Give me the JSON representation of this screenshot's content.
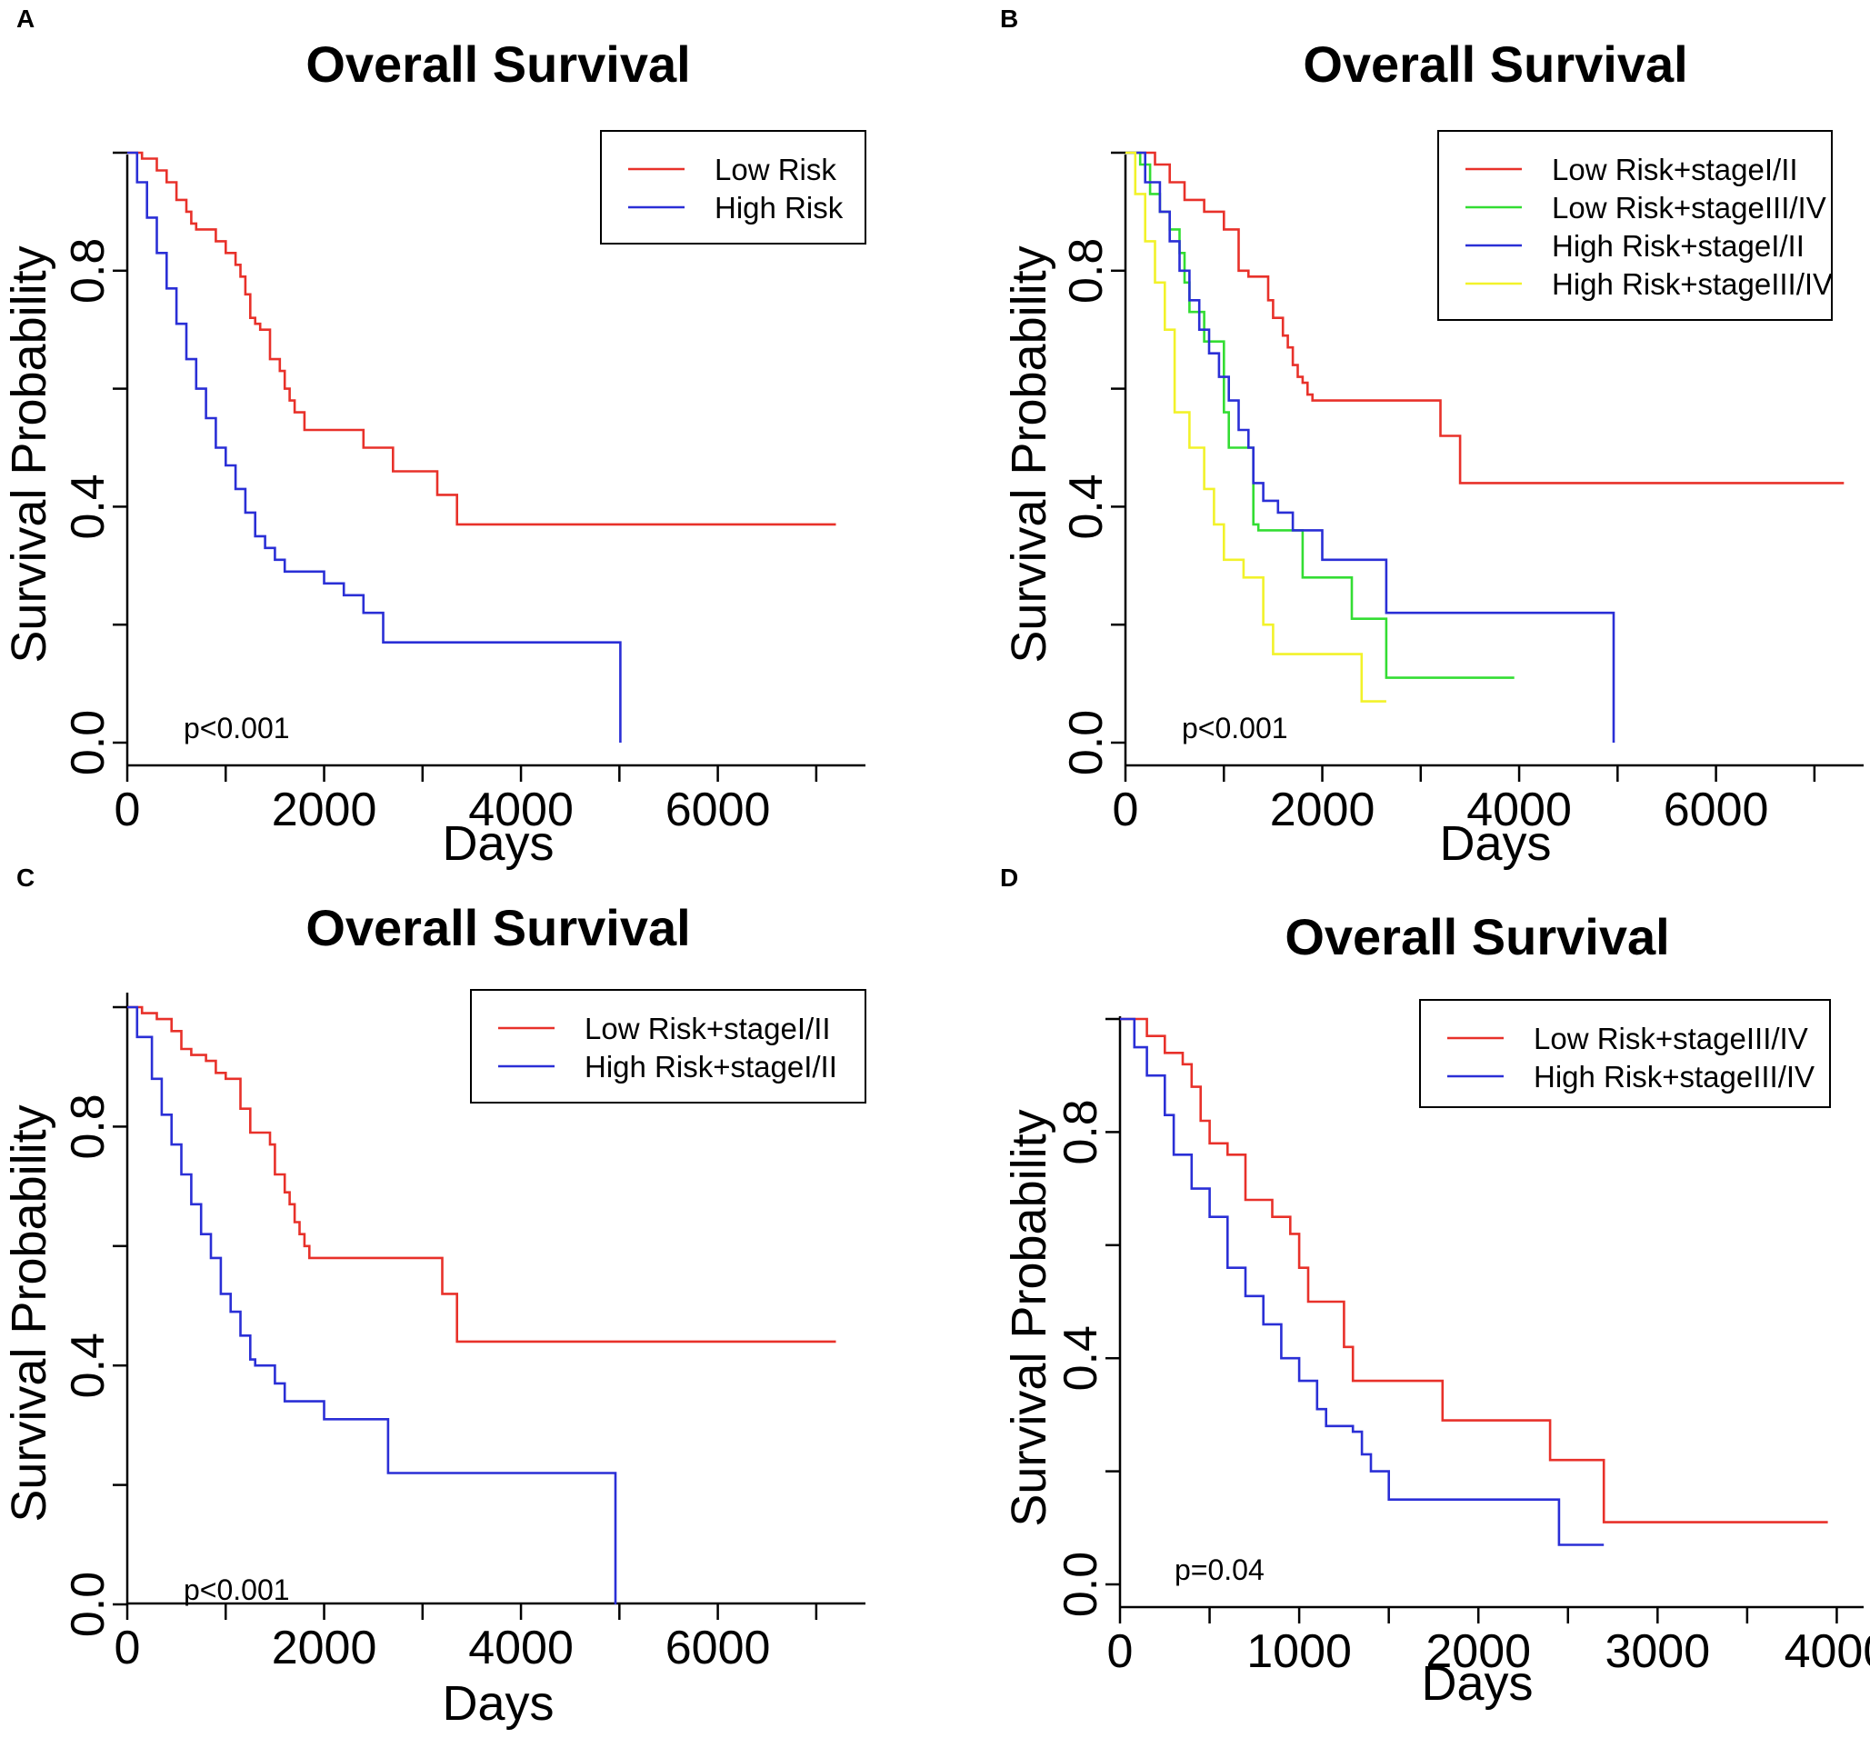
{
  "colors": {
    "red": "#e8312a",
    "blue": "#2a2fd6",
    "green": "#33dd33",
    "yellow": "#f2f22a",
    "black": "#000000"
  },
  "chart_data": [
    {
      "type": "line",
      "panel": "A",
      "title": "Overall Survival",
      "xlabel": "Days",
      "ylabel": "Survival Probability",
      "xlim": [
        0,
        7500
      ],
      "ylim": [
        0,
        1
      ],
      "x_ticks": [
        0,
        2000,
        4000,
        6000
      ],
      "y_ticks": [
        "0.0",
        "0.4",
        "0.8"
      ],
      "y_tick_values": [
        0,
        0.4,
        0.8
      ],
      "legend": [
        "Low Risk",
        "High Risk"
      ],
      "annotation": "p<0.001",
      "series": [
        {
          "name": "Low Risk",
          "color": "red",
          "x": [
            0,
            150,
            300,
            400,
            500,
            600,
            650,
            700,
            900,
            1000,
            1100,
            1150,
            1200,
            1250,
            1300,
            1350,
            1450,
            1550,
            1600,
            1650,
            1700,
            1800,
            1850,
            2400,
            2700,
            3150,
            3350,
            7200
          ],
          "y": [
            1.0,
            0.99,
            0.97,
            0.95,
            0.92,
            0.9,
            0.88,
            0.87,
            0.85,
            0.83,
            0.81,
            0.79,
            0.76,
            0.72,
            0.71,
            0.7,
            0.65,
            0.63,
            0.6,
            0.58,
            0.56,
            0.53,
            0.53,
            0.5,
            0.46,
            0.42,
            0.37,
            0.37
          ]
        },
        {
          "name": "High Risk",
          "color": "blue",
          "x": [
            0,
            100,
            200,
            300,
            400,
            500,
            600,
            700,
            800,
            900,
            1000,
            1100,
            1200,
            1300,
            1400,
            1500,
            1600,
            2000,
            2200,
            2400,
            2600,
            2650,
            5000,
            5010
          ],
          "y": [
            1.0,
            0.95,
            0.89,
            0.83,
            0.77,
            0.71,
            0.65,
            0.6,
            0.55,
            0.5,
            0.47,
            0.43,
            0.39,
            0.35,
            0.33,
            0.31,
            0.29,
            0.27,
            0.25,
            0.22,
            0.17,
            0.17,
            0.17,
            0.0
          ]
        }
      ]
    },
    {
      "type": "line",
      "panel": "B",
      "title": "Overall Survival",
      "xlabel": "Days",
      "ylabel": "Survival Probability",
      "xlim": [
        0,
        7500
      ],
      "ylim": [
        0,
        1
      ],
      "x_ticks": [
        0,
        2000,
        4000,
        6000
      ],
      "y_ticks": [
        "0.0",
        "0.4",
        "0.8"
      ],
      "y_tick_values": [
        0,
        0.4,
        0.8
      ],
      "legend": [
        "Low Risk+stageI/II",
        "Low Risk+stageIII/IV",
        "High Risk+stageI/II",
        "High Risk+stageIII/IV"
      ],
      "annotation": "p<0.001",
      "series": [
        {
          "name": "Low Risk+stageI/II",
          "color": "red",
          "x": [
            0,
            300,
            450,
            600,
            800,
            1000,
            1150,
            1250,
            1450,
            1500,
            1600,
            1650,
            1700,
            1750,
            1800,
            1850,
            1900,
            3200,
            3400,
            7300
          ],
          "y": [
            1.0,
            0.98,
            0.95,
            0.92,
            0.9,
            0.87,
            0.8,
            0.79,
            0.75,
            0.72,
            0.69,
            0.67,
            0.64,
            0.62,
            0.61,
            0.59,
            0.58,
            0.52,
            0.44,
            0.44
          ]
        },
        {
          "name": "Low Risk+stageIII/IV",
          "color": "green",
          "x": [
            0,
            150,
            250,
            350,
            450,
            550,
            600,
            650,
            800,
            1000,
            1050,
            1300,
            1350,
            1800,
            2300,
            2650,
            2700,
            3950
          ],
          "y": [
            1.0,
            0.98,
            0.93,
            0.9,
            0.87,
            0.83,
            0.78,
            0.73,
            0.68,
            0.56,
            0.5,
            0.37,
            0.36,
            0.28,
            0.21,
            0.11,
            0.11,
            0.11
          ]
        },
        {
          "name": "High Risk+stageI/II",
          "color": "blue",
          "x": [
            0,
            200,
            350,
            450,
            550,
            650,
            750,
            850,
            950,
            1050,
            1150,
            1250,
            1300,
            1400,
            1550,
            1700,
            2000,
            2650,
            2700,
            4950,
            4960
          ],
          "y": [
            1.0,
            0.95,
            0.9,
            0.85,
            0.8,
            0.75,
            0.7,
            0.66,
            0.62,
            0.58,
            0.53,
            0.5,
            0.44,
            0.41,
            0.39,
            0.36,
            0.31,
            0.22,
            0.22,
            0.22,
            0.0
          ]
        },
        {
          "name": "High Risk+stageIII/IV",
          "color": "yellow",
          "x": [
            0,
            100,
            200,
            300,
            400,
            500,
            650,
            800,
            900,
            1000,
            1200,
            1300,
            1400,
            1500,
            1900,
            2400,
            2650
          ],
          "y": [
            1.0,
            0.93,
            0.85,
            0.78,
            0.7,
            0.56,
            0.5,
            0.43,
            0.37,
            0.31,
            0.28,
            0.28,
            0.2,
            0.15,
            0.15,
            0.07,
            0.07
          ]
        }
      ]
    },
    {
      "type": "line",
      "panel": "C",
      "title": "Overall Survival",
      "xlabel": "Days",
      "ylabel": "Survival Probability",
      "xlim": [
        0,
        7500
      ],
      "ylim": [
        0,
        1
      ],
      "x_ticks": [
        0,
        2000,
        4000,
        6000
      ],
      "y_ticks": [
        "0.0",
        "0.4",
        "0.8"
      ],
      "y_tick_values": [
        0,
        0.4,
        0.8
      ],
      "legend": [
        "Low Risk+stageI/II",
        "High Risk+stageI/II"
      ],
      "annotation": "p<0.001",
      "series": [
        {
          "name": "Low Risk+stageI/II",
          "color": "red",
          "x": [
            0,
            150,
            300,
            450,
            550,
            650,
            800,
            900,
            1000,
            1150,
            1250,
            1450,
            1500,
            1600,
            1650,
            1700,
            1750,
            1800,
            1850,
            3200,
            3350,
            7200
          ],
          "y": [
            1.0,
            0.99,
            0.98,
            0.96,
            0.93,
            0.92,
            0.91,
            0.89,
            0.88,
            0.83,
            0.79,
            0.77,
            0.72,
            0.69,
            0.67,
            0.64,
            0.62,
            0.6,
            0.58,
            0.52,
            0.44,
            0.44
          ]
        },
        {
          "name": "High Risk+stageI/II",
          "color": "blue",
          "x": [
            0,
            100,
            250,
            350,
            450,
            550,
            650,
            750,
            850,
            950,
            1050,
            1150,
            1250,
            1300,
            1500,
            1600,
            2000,
            2650,
            2700,
            4950,
            4960
          ],
          "y": [
            1.0,
            0.95,
            0.88,
            0.82,
            0.77,
            0.72,
            0.67,
            0.62,
            0.58,
            0.52,
            0.49,
            0.45,
            0.41,
            0.4,
            0.37,
            0.34,
            0.31,
            0.22,
            0.22,
            0.22,
            0.0
          ]
        }
      ]
    },
    {
      "type": "line",
      "panel": "D",
      "title": "Overall Survival",
      "xlabel": "Days",
      "ylabel": "Survival Probability",
      "xlim": [
        0,
        4150
      ],
      "ylim": [
        0,
        1
      ],
      "x_ticks": [
        0,
        1000,
        2000,
        3000,
        4000
      ],
      "y_ticks": [
        "0.0",
        "0.4",
        "0.8"
      ],
      "y_tick_values": [
        0,
        0.4,
        0.8
      ],
      "legend": [
        "Low Risk+stageIII/IV",
        "High Risk+stageIII/IV"
      ],
      "annotation": "p=0.04",
      "series": [
        {
          "name": "Low Risk+stageIII/IV",
          "color": "red",
          "x": [
            0,
            150,
            250,
            350,
            400,
            450,
            500,
            600,
            700,
            850,
            950,
            1000,
            1050,
            1250,
            1300,
            1800,
            2400,
            2700,
            3950
          ],
          "y": [
            1.0,
            0.97,
            0.94,
            0.92,
            0.88,
            0.82,
            0.78,
            0.76,
            0.68,
            0.65,
            0.62,
            0.56,
            0.5,
            0.42,
            0.36,
            0.29,
            0.22,
            0.11,
            0.11
          ]
        },
        {
          "name": "High Risk+stageIII/IV",
          "color": "blue",
          "x": [
            0,
            80,
            150,
            250,
            300,
            400,
            500,
            600,
            700,
            800,
            900,
            1000,
            1100,
            1150,
            1300,
            1350,
            1400,
            1500,
            1600,
            2400,
            2450,
            2700
          ],
          "y": [
            1.0,
            0.95,
            0.9,
            0.83,
            0.76,
            0.7,
            0.65,
            0.56,
            0.51,
            0.46,
            0.4,
            0.36,
            0.31,
            0.28,
            0.27,
            0.23,
            0.2,
            0.15,
            0.15,
            0.15,
            0.07,
            0.07
          ]
        }
      ]
    }
  ]
}
